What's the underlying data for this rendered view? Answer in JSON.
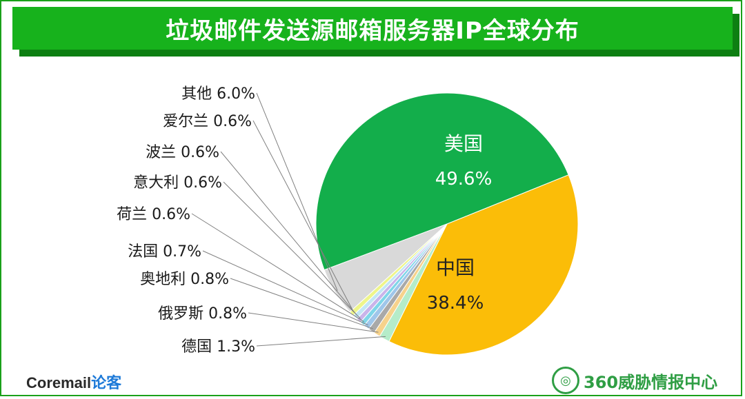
{
  "header": {
    "title": "垃圾邮件发送源邮箱服务器IP全球分布"
  },
  "chart_data": {
    "type": "pie",
    "title": "垃圾邮件发送源邮箱服务器IP全球分布",
    "slices": [
      {
        "label": "美国",
        "pct_label": "49.6%",
        "value": 49.6,
        "color": "#13ae4b"
      },
      {
        "label": "中国",
        "pct_label": "38.4%",
        "value": 38.4,
        "color": "#fbbd08"
      },
      {
        "label": "德国",
        "pct_label": "1.3%",
        "value": 1.3,
        "color": "#b5ecc9"
      },
      {
        "label": "俄罗斯",
        "pct_label": "0.8%",
        "value": 0.8,
        "color": "#f6d28c"
      },
      {
        "label": "奥地利",
        "pct_label": "0.8%",
        "value": 0.8,
        "color": "#a9a9a9"
      },
      {
        "label": "法国",
        "pct_label": "0.7%",
        "value": 0.7,
        "color": "#9fc6ea"
      },
      {
        "label": "荷兰",
        "pct_label": "0.6%",
        "value": 0.6,
        "color": "#7fd6e8"
      },
      {
        "label": "意大利",
        "pct_label": "0.6%",
        "value": 0.6,
        "color": "#c9b4ea"
      },
      {
        "label": "波兰",
        "pct_label": "0.6%",
        "value": 0.6,
        "color": "#c2e6f5"
      },
      {
        "label": "爱尔兰",
        "pct_label": "0.6%",
        "value": 0.6,
        "color": "#eef58a"
      },
      {
        "label": "其他",
        "pct_label": "6.0%",
        "value": 6.0,
        "color": "#d9d9d9"
      }
    ]
  },
  "footer": {
    "left_brand": "Coremail",
    "left_accent": "论客",
    "right_brand": "360威胁情报中心",
    "right_emblem": "globe-emblem-icon"
  }
}
